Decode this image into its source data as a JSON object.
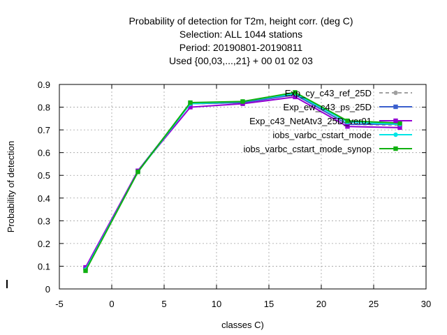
{
  "chart_data": {
    "type": "line",
    "title_lines": [
      "Probability of detection  for T2m, height corr. (deg C)",
      "Selection: ALL   1044 stations",
      "Period: 20190801-20190811",
      "Used {00,03,...,21} + 00 01 02 03"
    ],
    "xlabel": "classes C)",
    "ylabel": "Probability of detection",
    "xlim": [
      -5,
      30
    ],
    "ylim": [
      0,
      0.9
    ],
    "xticks": [
      -5,
      0,
      5,
      10,
      15,
      20,
      25,
      30
    ],
    "yticks": [
      0,
      0.1,
      0.2,
      0.3,
      0.4,
      0.5,
      0.6,
      0.7,
      0.8,
      0.9
    ],
    "grid": true,
    "legend_position": "top-right",
    "x": [
      -2.5,
      2.5,
      7.5,
      12.5,
      17.5,
      22.5,
      27.5
    ],
    "series": [
      {
        "name": "Exp_cy_c43_ref_25D",
        "color": "#a0a0a0",
        "dash": "dashed",
        "marker": "circle",
        "values": [
          0.09,
          0.52,
          0.815,
          0.82,
          0.855,
          0.725,
          0.72
        ]
      },
      {
        "name": "Exp_ew_c43_ps_25D",
        "color": "#3a5fcd",
        "dash": "solid",
        "marker": "square",
        "values": [
          0.09,
          0.52,
          0.815,
          0.82,
          0.855,
          0.725,
          0.725
        ]
      },
      {
        "name": "Exp_c43_NetAtv3_25D_ver01",
        "color": "#9400d3",
        "dash": "solid",
        "marker": "square",
        "values": [
          0.095,
          0.52,
          0.8,
          0.815,
          0.845,
          0.715,
          0.71
        ]
      },
      {
        "name": "iobs_varbc_cstart_mode",
        "color": "#00e5e5",
        "dash": "solid",
        "marker": "circle",
        "values": [
          0.085,
          0.515,
          0.815,
          0.825,
          0.86,
          0.735,
          0.725
        ]
      },
      {
        "name": "iobs_varbc_cstart_mode_synop",
        "color": "#10b010",
        "dash": "solid",
        "marker": "square",
        "values": [
          0.08,
          0.515,
          0.82,
          0.825,
          0.865,
          0.74,
          0.73
        ]
      }
    ]
  }
}
